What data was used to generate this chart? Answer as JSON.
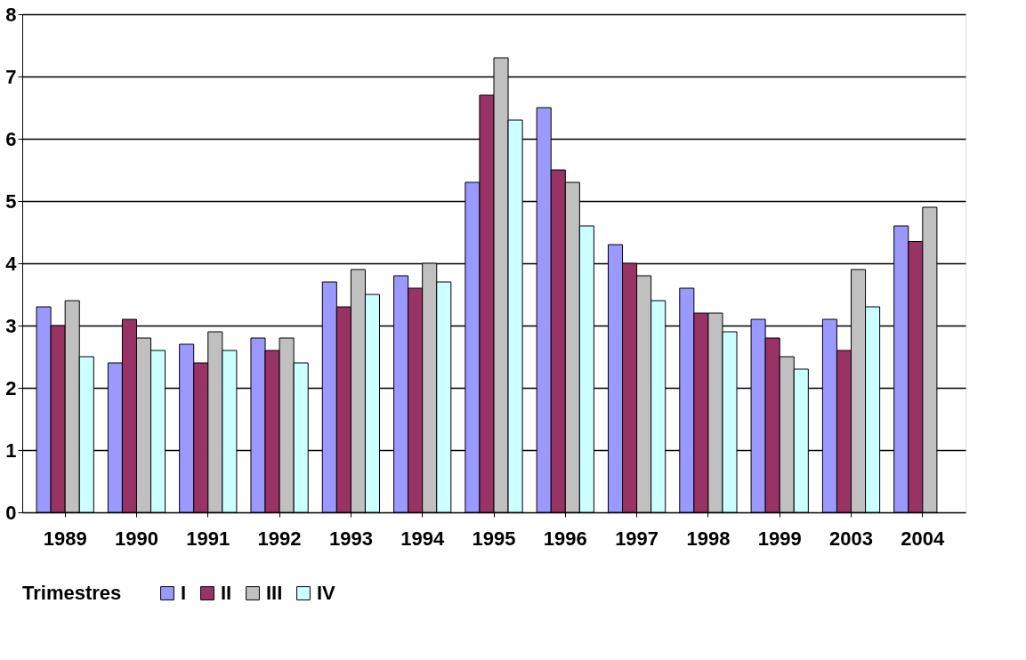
{
  "chart_data": {
    "type": "bar",
    "categories": [
      "1989",
      "1990",
      "1991",
      "1992",
      "1993",
      "1994",
      "1995",
      "1996",
      "1997",
      "1998",
      "1999",
      "2003",
      "2004"
    ],
    "legend_title": "Trimestres",
    "legend": "bottom",
    "grid": "y",
    "ylim": [
      0,
      8
    ],
    "yticks": [
      0,
      1,
      2,
      3,
      4,
      5,
      6,
      7,
      8
    ],
    "series": [
      {
        "name": "I",
        "color": "#9999ff",
        "values": [
          3.3,
          2.4,
          2.7,
          2.8,
          3.7,
          3.8,
          5.3,
          6.5,
          4.3,
          3.6,
          3.1,
          3.1,
          4.6
        ]
      },
      {
        "name": "II",
        "color": "#993366",
        "values": [
          3.0,
          3.1,
          2.4,
          2.6,
          3.3,
          3.6,
          6.7,
          5.5,
          4.0,
          3.2,
          2.8,
          2.6,
          4.35
        ]
      },
      {
        "name": "III",
        "color": "#c0c0c0",
        "values": [
          3.4,
          2.8,
          2.9,
          2.8,
          3.9,
          4.0,
          7.3,
          5.3,
          3.8,
          3.2,
          2.5,
          3.9,
          4.9
        ]
      },
      {
        "name": "IV",
        "color": "#ccffff",
        "values": [
          2.5,
          2.6,
          2.6,
          2.4,
          3.5,
          3.7,
          6.3,
          4.6,
          3.4,
          2.9,
          2.3,
          3.3,
          null
        ]
      }
    ]
  }
}
